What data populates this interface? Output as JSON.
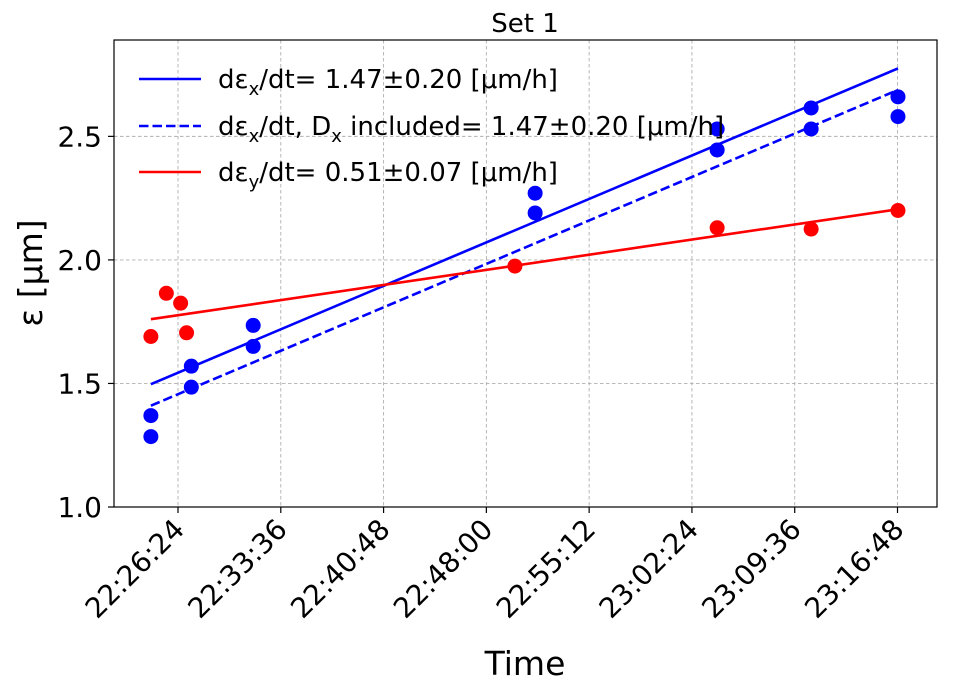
{
  "chart_data": {
    "type": "scatter",
    "title": "Set 1",
    "xlabel": "Time",
    "ylabel": "ε [μm]",
    "x_tick_labels": [
      "22:26:24",
      "22:33:36",
      "22:40:48",
      "22:48:00",
      "22:55:12",
      "23:02:24",
      "23:09:36",
      "23:16:48"
    ],
    "x_ticks": [
      "22:26:24",
      "22:33:36",
      "22:40:48",
      "22:48:00",
      "22:55:12",
      "23:02:24",
      "23:09:36",
      "23:16:48"
    ],
    "xlim": [
      "22:21:55",
      "23:19:34"
    ],
    "y_ticks": [
      1.0,
      1.5,
      2.0,
      2.5
    ],
    "y_tick_labels": [
      "1.0",
      "1.5",
      "2.0",
      "2.5"
    ],
    "ylim": [
      1.0,
      2.89
    ],
    "grid": true,
    "legend_position": "top-left",
    "legend": [
      {
        "text": "dεx/dt= 1.47±0.20 [μm/h]",
        "main": "dε",
        "sub": "x",
        "rest": "/dt= 1.47±0.20 [μm/h]",
        "color": "#0000ff",
        "dash": "solid"
      },
      {
        "text": "dεx/dt, Dx included= 1.47±0.20 [μm/h]",
        "main": "dε",
        "sub": "x",
        "mid": "/dt,  D",
        "sub2": "x",
        "rest": " included= 1.47±0.20 [μm/h]",
        "color": "#0000ff",
        "dash": "dashed"
      },
      {
        "text": "dεy/dt= 0.51±0.07 [μm/h]",
        "main": "dε",
        "sub": "y",
        "rest": "/dt= 0.51±0.07 [μm/h]",
        "color": "#ff0000",
        "dash": "solid"
      }
    ],
    "series": [
      {
        "kind": "points",
        "color": "#0000ff",
        "points": [
          {
            "x": "22:24:30",
            "y": 1.37
          },
          {
            "x": "22:24:30",
            "y": 1.285
          },
          {
            "x": "22:27:20",
            "y": 1.57
          },
          {
            "x": "22:27:20",
            "y": 1.485
          },
          {
            "x": "22:31:40",
            "y": 1.735
          },
          {
            "x": "22:31:40",
            "y": 1.65
          },
          {
            "x": "22:51:25",
            "y": 2.27
          },
          {
            "x": "22:51:25",
            "y": 2.19
          },
          {
            "x": "23:04:10",
            "y": 2.53
          },
          {
            "x": "23:04:10",
            "y": 2.445
          },
          {
            "x": "23:10:45",
            "y": 2.615
          },
          {
            "x": "23:10:45",
            "y": 2.53
          },
          {
            "x": "23:16:50",
            "y": 2.66
          },
          {
            "x": "23:16:50",
            "y": 2.58
          }
        ]
      },
      {
        "kind": "points",
        "color": "#ff0000",
        "points": [
          {
            "x": "22:24:30",
            "y": 1.69
          },
          {
            "x": "22:25:35",
            "y": 1.865
          },
          {
            "x": "22:26:35",
            "y": 1.825
          },
          {
            "x": "22:27:00",
            "y": 1.705
          },
          {
            "x": "22:50:00",
            "y": 1.975
          },
          {
            "x": "23:04:10",
            "y": 2.13
          },
          {
            "x": "23:10:45",
            "y": 2.125
          },
          {
            "x": "23:16:50",
            "y": 2.2
          }
        ]
      },
      {
        "kind": "line",
        "color": "#0000ff",
        "dash": "solid",
        "points": [
          {
            "x": "22:24:30",
            "y": 1.497
          },
          {
            "x": "23:16:50",
            "y": 2.775
          }
        ]
      },
      {
        "kind": "line",
        "color": "#0000ff",
        "dash": "dashed",
        "points": [
          {
            "x": "22:24:30",
            "y": 1.41
          },
          {
            "x": "23:16:50",
            "y": 2.688
          }
        ]
      },
      {
        "kind": "line",
        "color": "#ff0000",
        "dash": "solid",
        "points": [
          {
            "x": "22:24:30",
            "y": 1.76
          },
          {
            "x": "23:16:50",
            "y": 2.205
          }
        ]
      }
    ]
  }
}
